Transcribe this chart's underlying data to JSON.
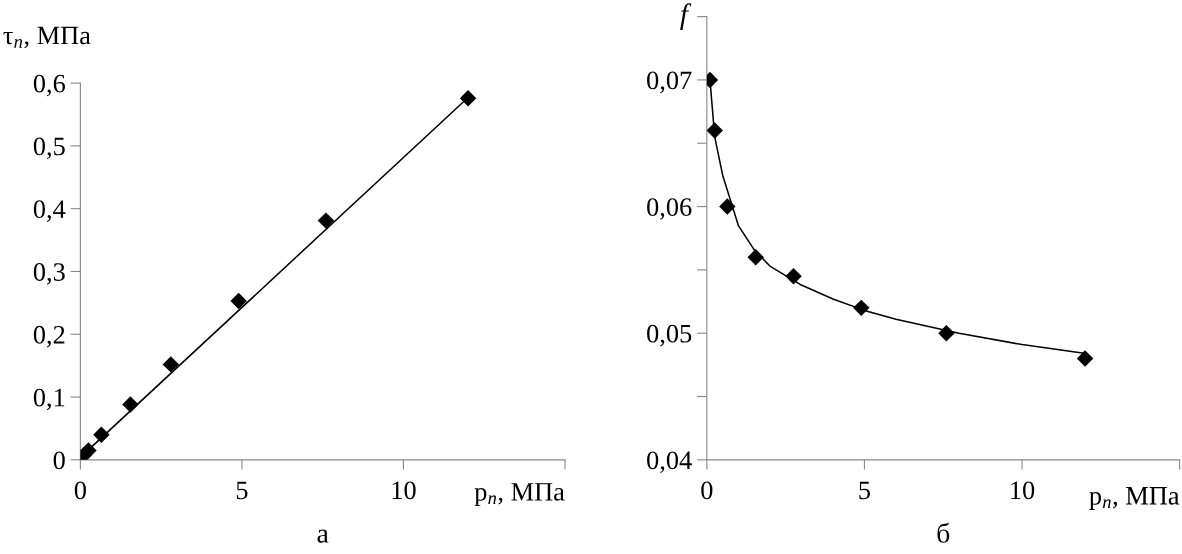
{
  "chart_data": [
    {
      "type": "scatter",
      "xlabel": "p$_{n}$, МПа",
      "ylabel": "τ$_{n}$, МПа",
      "annotations": [
        "а"
      ],
      "xlim": [
        0,
        15
      ],
      "xticks": [
        0,
        5,
        10,
        {
          "value": 15,
          "label": null
        }
      ],
      "ylim": [
        0,
        0.6
      ],
      "yticks": [
        {
          "value": 0,
          "label": "0"
        },
        {
          "value": 0.1,
          "label": "0,1"
        },
        {
          "value": 0.2,
          "label": "0,2"
        },
        {
          "value": 0.3,
          "label": "0,3"
        },
        {
          "value": 0.4,
          "label": "0,4"
        },
        {
          "value": 0.5,
          "label": "0,5"
        },
        {
          "value": 0.6,
          "label": "0,6"
        }
      ],
      "grid": false,
      "legend": false,
      "series": [
        {
          "marker": "diamond",
          "color": "#000000",
          "x": [
            0.1,
            0.25,
            0.65,
            1.55,
            2.8,
            4.9,
            7.6,
            12.0
          ],
          "values": [
            0.007,
            0.015,
            0.04,
            0.088,
            0.152,
            0.253,
            0.381,
            0.576
          ]
        },
        {
          "type": "line",
          "marker": "none",
          "line_style": "solid",
          "color": "#000000",
          "x": [
            0,
            12
          ],
          "values": [
            0.004,
            0.577
          ]
        }
      ]
    },
    {
      "type": "scatter",
      "xlabel": "p$_{n}$, МПа",
      "ylabel": "f",
      "annotations": [
        "б"
      ],
      "xlim": [
        0,
        15
      ],
      "xticks": [
        0,
        5,
        10,
        {
          "value": 15,
          "label": null
        }
      ],
      "ylim": [
        0.04,
        0.075
      ],
      "yticks": [
        {
          "value": 0.04,
          "label": "0,04"
        },
        {
          "value": 0.045,
          "label": null
        },
        {
          "value": 0.05,
          "label": "0,05"
        },
        {
          "value": 0.055,
          "label": null
        },
        {
          "value": 0.06,
          "label": "0,06"
        },
        {
          "value": 0.065,
          "label": null
        },
        {
          "value": 0.07,
          "label": "0,07"
        },
        {
          "value": 0.075,
          "label": null
        }
      ],
      "grid": false,
      "legend": false,
      "series": [
        {
          "marker": "diamond",
          "color": "#000000",
          "x": [
            0.1,
            0.25,
            0.65,
            1.55,
            2.75,
            4.9,
            7.6,
            12.0
          ],
          "values": [
            0.07,
            0.066,
            0.06,
            0.056,
            0.0545,
            0.052,
            0.05,
            0.048
          ]
        },
        {
          "type": "line",
          "marker": "none",
          "line_style": "solid",
          "color": "#000000",
          "x": [
            0.1,
            0.25,
            0.5,
            1,
            1.5,
            2,
            3,
            4,
            5,
            6,
            8,
            10,
            12
          ],
          "values": [
            0.07,
            0.0655,
            0.0625,
            0.0585,
            0.0566,
            0.0553,
            0.0538,
            0.0527,
            0.0518,
            0.0511,
            0.05,
            0.0491,
            0.0484
          ]
        }
      ]
    }
  ]
}
